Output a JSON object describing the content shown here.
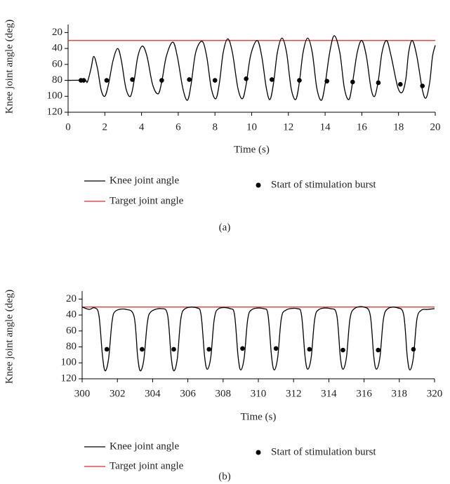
{
  "chart_data": [
    {
      "type": "line",
      "panel_label": "(a)",
      "x_label": "Time (s)",
      "y_label": "Knee joint angle (deg)",
      "xlim": [
        0,
        20
      ],
      "xticks": [
        0,
        2,
        4,
        6,
        8,
        10,
        12,
        14,
        16,
        18,
        20
      ],
      "ylim": [
        10,
        120
      ],
      "y_inverted": true,
      "yticks": [
        20,
        40,
        60,
        80,
        100,
        120
      ],
      "series": [
        {
          "name": "Knee joint angle",
          "color": "#000000",
          "type": "line",
          "x": [
            0,
            0.9,
            1.05,
            1.25,
            1.4,
            1.6,
            1.8,
            2.0,
            2.2,
            2.45,
            2.7,
            2.9,
            3.15,
            3.4,
            3.6,
            3.8,
            4.05,
            4.3,
            4.6,
            4.9,
            5.1,
            5.35,
            5.7,
            5.95,
            6.25,
            6.5,
            6.7,
            6.95,
            7.3,
            7.55,
            7.8,
            8.05,
            8.25,
            8.45,
            8.7,
            8.95,
            9.25,
            9.5,
            9.7,
            9.95,
            10.3,
            10.55,
            10.8,
            11.0,
            11.2,
            11.4,
            11.65,
            11.9,
            12.15,
            12.4,
            12.6,
            12.8,
            13.05,
            13.3,
            13.55,
            13.8,
            14.0,
            14.25,
            14.5,
            14.8,
            15.05,
            15.3,
            15.5,
            15.75,
            16.0,
            16.25,
            16.5,
            16.7,
            16.9,
            17.1,
            17.35,
            17.6,
            17.95,
            18.2,
            18.4,
            18.55,
            18.75,
            19.0,
            19.3,
            19.5,
            19.7,
            19.85,
            20
          ],
          "values": [
            80,
            80,
            82,
            65,
            50,
            65,
            92,
            100,
            85,
            55,
            40,
            55,
            90,
            100,
            80,
            50,
            37,
            50,
            85,
            97,
            82,
            50,
            32,
            50,
            90,
            105,
            85,
            45,
            31,
            50,
            90,
            103,
            82,
            45,
            28,
            45,
            90,
            103,
            85,
            48,
            30,
            50,
            90,
            104,
            82,
            45,
            27,
            45,
            90,
            104,
            82,
            45,
            27,
            45,
            90,
            105,
            85,
            45,
            24,
            45,
            90,
            104,
            82,
            45,
            30,
            50,
            90,
            100,
            80,
            45,
            30,
            50,
            88,
            95,
            78,
            45,
            30,
            50,
            92,
            102,
            82,
            50,
            36
          ]
        },
        {
          "name": "Target joint angle",
          "color": "#e8262a",
          "type": "line",
          "x": [
            0,
            20
          ],
          "values": [
            30,
            30
          ]
        },
        {
          "name": "Start of stimulation burst",
          "color": "#000000",
          "type": "scatter",
          "x": [
            0.7,
            0.85,
            2.1,
            3.5,
            5.1,
            6.6,
            8.0,
            9.7,
            11.1,
            12.6,
            14.1,
            15.5,
            16.9,
            18.1,
            19.3
          ],
          "values": [
            80,
            80,
            80,
            79,
            80,
            79,
            80,
            78,
            79,
            80,
            81,
            82,
            83,
            85,
            87
          ]
        }
      ]
    },
    {
      "type": "line",
      "panel_label": "(b)",
      "x_label": "Time (s)",
      "y_label": "Knee joint angle (deg)",
      "xlim": [
        300,
        320
      ],
      "xticks": [
        300,
        302,
        304,
        306,
        308,
        310,
        312,
        314,
        316,
        318,
        320
      ],
      "ylim": [
        10,
        120
      ],
      "y_inverted": true,
      "yticks": [
        20,
        40,
        60,
        80,
        100,
        120
      ],
      "series": [
        {
          "name": "Knee joint angle",
          "color": "#000000",
          "type": "line",
          "x": [
            300,
            300.4,
            300.7,
            300.95,
            301.15,
            301.3,
            301.5,
            301.7,
            301.9,
            302.5,
            302.95,
            303.15,
            303.3,
            303.5,
            303.7,
            303.9,
            304.5,
            304.85,
            305.05,
            305.2,
            305.4,
            305.6,
            305.85,
            306.5,
            306.75,
            306.95,
            307.1,
            307.3,
            307.5,
            307.75,
            308.4,
            308.65,
            308.85,
            309.0,
            309.2,
            309.4,
            309.65,
            310.3,
            310.55,
            310.75,
            310.9,
            311.1,
            311.3,
            311.55,
            312.2,
            312.45,
            312.65,
            312.8,
            313.0,
            313.2,
            313.45,
            314.1,
            314.45,
            314.65,
            314.8,
            315.0,
            315.2,
            315.45,
            316.0,
            316.35,
            316.55,
            316.7,
            316.9,
            317.1,
            317.35,
            317.9,
            318.25,
            318.45,
            318.6,
            318.8,
            319.0,
            319.25,
            319.6,
            320
          ],
          "values": [
            30,
            33,
            31,
            40,
            90,
            110,
            95,
            48,
            35,
            33,
            42,
            92,
            110,
            96,
            50,
            36,
            32,
            40,
            92,
            110,
            95,
            45,
            32,
            31,
            40,
            92,
            108,
            93,
            45,
            32,
            32,
            40,
            92,
            109,
            93,
            45,
            33,
            32,
            40,
            92,
            109,
            93,
            45,
            34,
            32,
            40,
            92,
            108,
            93,
            45,
            33,
            32,
            40,
            92,
            108,
            93,
            45,
            32,
            30,
            40,
            92,
            108,
            93,
            45,
            32,
            31,
            40,
            92,
            109,
            93,
            45,
            34,
            33,
            32
          ]
        },
        {
          "name": "Target joint angle",
          "color": "#e8262a",
          "type": "line",
          "x": [
            300,
            320
          ],
          "values": [
            30,
            30
          ]
        },
        {
          "name": "Start of stimulation burst",
          "color": "#000000",
          "type": "scatter",
          "x": [
            301.4,
            303.4,
            305.2,
            307.2,
            309.1,
            311.0,
            312.9,
            314.8,
            316.8,
            318.8
          ],
          "values": [
            83,
            83,
            83,
            83,
            82,
            82,
            83,
            84,
            84,
            83
          ]
        }
      ]
    }
  ]
}
